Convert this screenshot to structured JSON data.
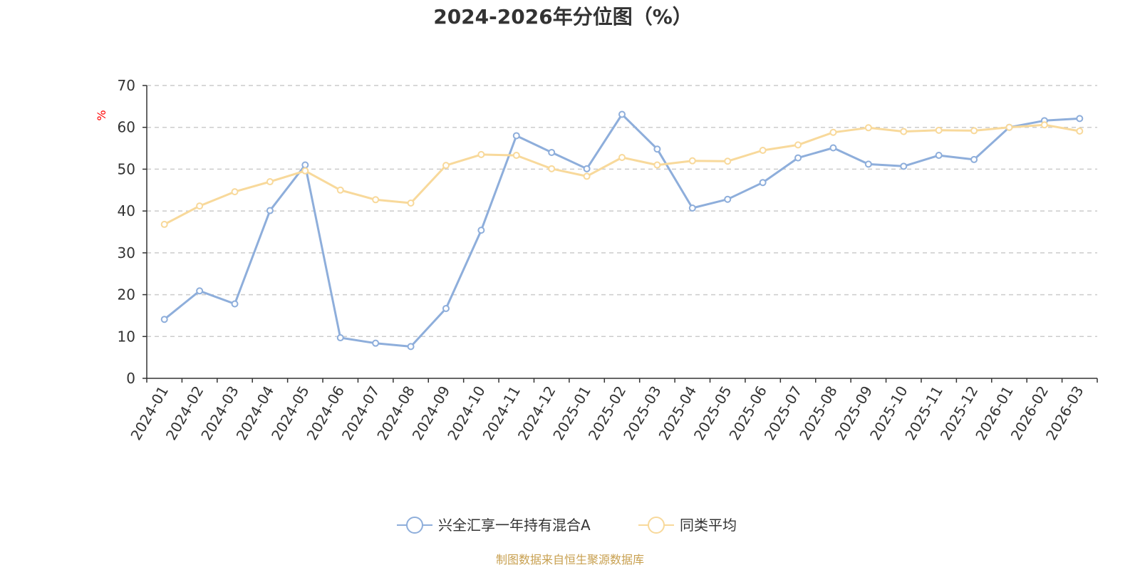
{
  "chart_data": {
    "type": "line",
    "title": "2024-2026年分位图（%）",
    "ylabel": "%",
    "xlabel": "",
    "ylim": [
      0,
      70
    ],
    "yticks": [
      0,
      10,
      20,
      30,
      40,
      50,
      60,
      70
    ],
    "grid": true,
    "legend_position": "bottom",
    "categories": [
      "2024-01",
      "2024-02",
      "2024-03",
      "2024-04",
      "2024-05",
      "2024-06",
      "2024-07",
      "2024-08",
      "2024-09",
      "2024-10",
      "2024-11",
      "2024-12",
      "2025-01",
      "2025-02",
      "2025-03",
      "2025-04",
      "2025-05",
      "2025-06",
      "2025-07",
      "2025-08",
      "2025-09",
      "2025-10",
      "2025-11",
      "2025-12",
      "2026-01",
      "2026-02",
      "2026-03"
    ],
    "series": [
      {
        "name": "兴全汇享一年持有混合A",
        "color": "#8eaedb",
        "values": [
          14.1,
          20.9,
          17.8,
          40.1,
          51.0,
          9.7,
          8.4,
          7.6,
          16.7,
          35.4,
          58.0,
          54.0,
          50.1,
          63.1,
          54.8,
          40.7,
          42.8,
          46.8,
          52.7,
          55.1,
          51.2,
          50.7,
          53.3,
          52.3,
          60.0,
          61.6,
          62.1
        ]
      },
      {
        "name": "同类平均",
        "color": "#f8d99b",
        "values": [
          36.8,
          41.2,
          44.6,
          47.0,
          49.6,
          45.0,
          42.7,
          41.9,
          50.9,
          53.5,
          53.3,
          50.1,
          48.3,
          52.8,
          51.0,
          52.0,
          51.9,
          54.5,
          55.8,
          58.8,
          59.9,
          59.0,
          59.3,
          59.2,
          60.0,
          60.6,
          59.1
        ]
      }
    ]
  },
  "colors": {
    "axis": "#333333",
    "grid": "#cccccc",
    "unit_label": "#ff0000",
    "source_text": "#c8a050"
  },
  "source": "制图数据来自恒生聚源数据库"
}
